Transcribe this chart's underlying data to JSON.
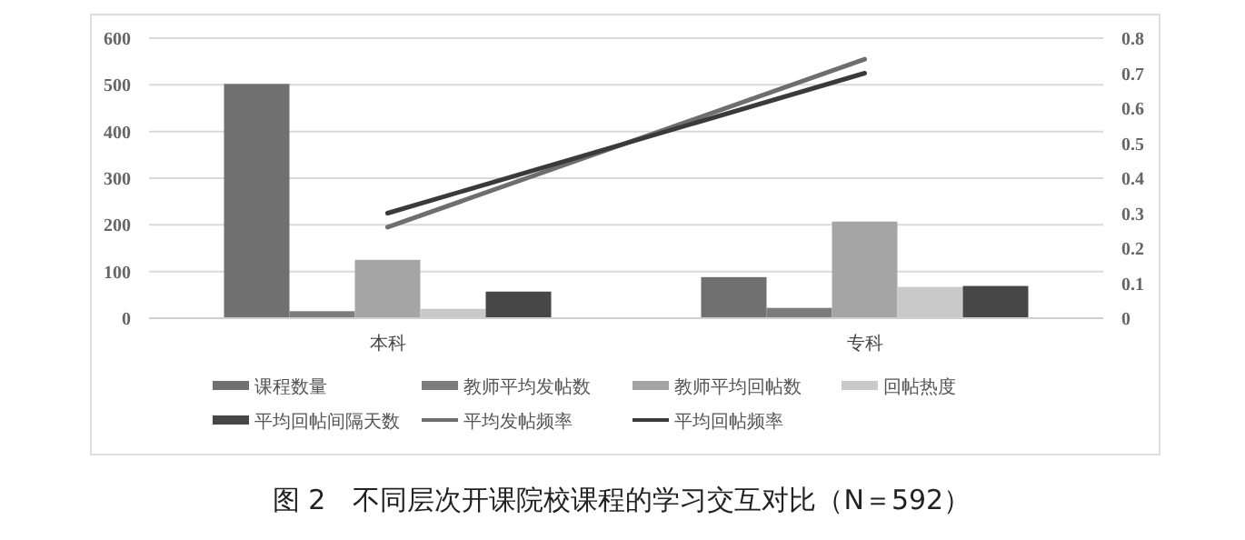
{
  "chart_data": {
    "type": "bar",
    "title": "图 2　不同层次开课院校课程的学习交互对比（N＝592）",
    "categories": [
      "本科",
      "专科"
    ],
    "series": [
      {
        "name": "课程数量",
        "color": "#707070",
        "values": [
          502,
          88
        ]
      },
      {
        "name": "教师平均发帖数",
        "color": "#7c7c7c",
        "values": [
          15,
          22
        ]
      },
      {
        "name": "教师平均回帖数",
        "color": "#a5a5a5",
        "values": [
          125,
          207
        ]
      },
      {
        "name": "回帖热度",
        "color": "#c9c9c9",
        "values": [
          20,
          67
        ]
      },
      {
        "name": "平均回帖间隔天数",
        "color": "#474747",
        "values": [
          57,
          69
        ]
      },
      {
        "name": "平均发帖频率",
        "type": "line",
        "axis": "y2",
        "color": "#6e6e6e",
        "values": [
          0.26,
          0.74
        ]
      },
      {
        "name": "平均回帖频率",
        "type": "line",
        "axis": "y2",
        "color": "#3a3a3a",
        "values": [
          0.3,
          0.7
        ]
      }
    ],
    "ylim": [
      0,
      600
    ],
    "yticks": [
      0,
      100,
      200,
      300,
      400,
      500,
      600
    ],
    "y2lim": [
      0,
      0.8
    ],
    "y2ticks": [
      0,
      0.1,
      0.2,
      0.3,
      0.4,
      0.5,
      0.6,
      0.7,
      0.8
    ],
    "grid": "y",
    "legend": "bottom"
  }
}
